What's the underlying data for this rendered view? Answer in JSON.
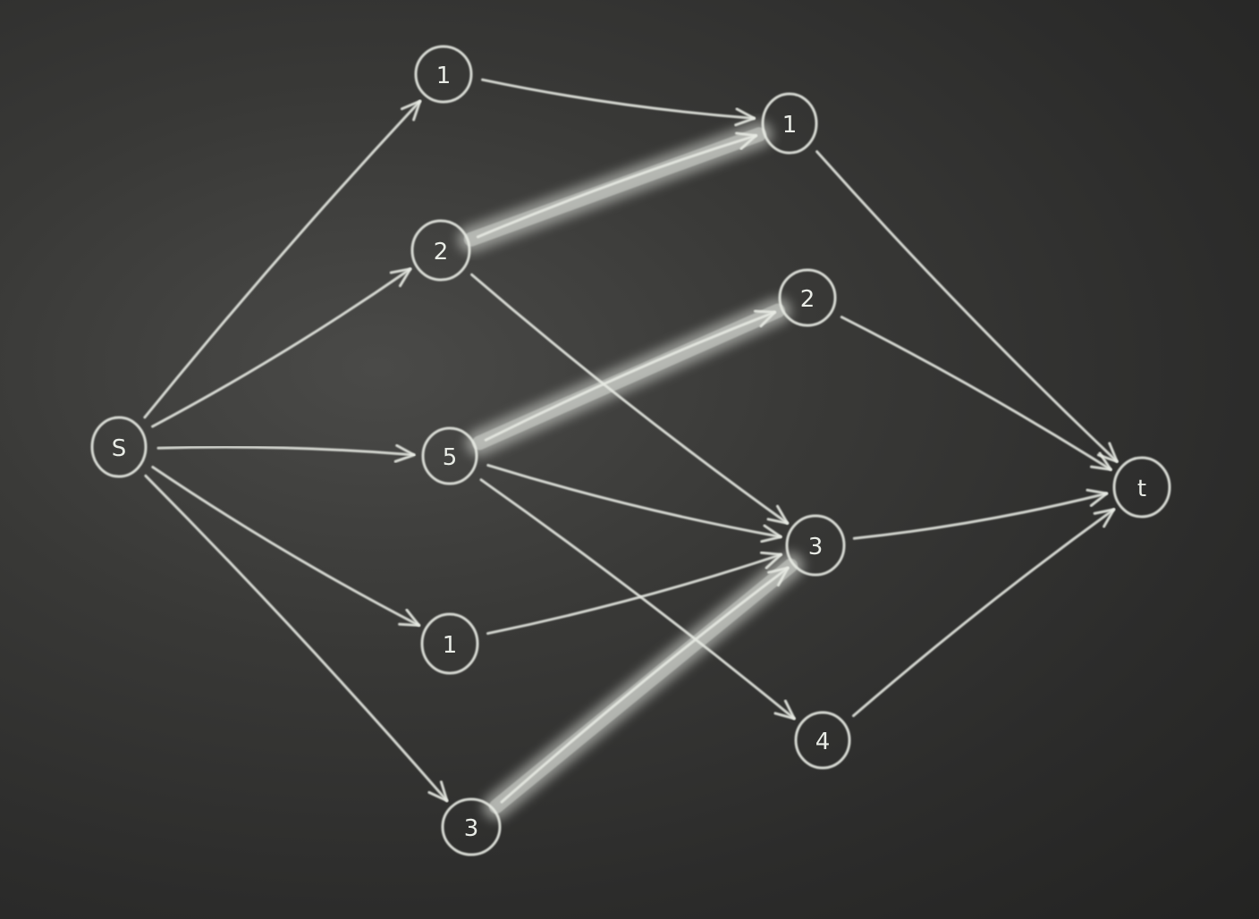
{
  "colors": {
    "chalk": "#e8ebe4",
    "highlight": "#d9dcd6",
    "board": "#343432"
  },
  "nodes": [
    {
      "id": "s",
      "label": "S"
    },
    {
      "id": "a1",
      "label": "1"
    },
    {
      "id": "a2",
      "label": "2"
    },
    {
      "id": "a5",
      "label": "5"
    },
    {
      "id": "a1b",
      "label": "1"
    },
    {
      "id": "a3",
      "label": "3"
    },
    {
      "id": "b1",
      "label": "1"
    },
    {
      "id": "b2",
      "label": "2"
    },
    {
      "id": "b3",
      "label": "3"
    },
    {
      "id": "b4",
      "label": "4"
    },
    {
      "id": "t",
      "label": "t"
    }
  ],
  "edges": [
    {
      "from": "s",
      "to": "a1"
    },
    {
      "from": "s",
      "to": "a2"
    },
    {
      "from": "s",
      "to": "a5"
    },
    {
      "from": "s",
      "to": "a1b"
    },
    {
      "from": "s",
      "to": "a3"
    },
    {
      "from": "a1",
      "to": "b1"
    },
    {
      "from": "a2",
      "to": "b1",
      "highlighted": true
    },
    {
      "from": "a2",
      "to": "b3"
    },
    {
      "from": "a5",
      "to": "b2",
      "highlighted": true
    },
    {
      "from": "a5",
      "to": "b3"
    },
    {
      "from": "a5",
      "to": "b4"
    },
    {
      "from": "a1b",
      "to": "b3"
    },
    {
      "from": "a3",
      "to": "b3",
      "highlighted": true
    },
    {
      "from": "b1",
      "to": "t"
    },
    {
      "from": "b2",
      "to": "t"
    },
    {
      "from": "b3",
      "to": "t"
    },
    {
      "from": "b4",
      "to": "t"
    }
  ]
}
